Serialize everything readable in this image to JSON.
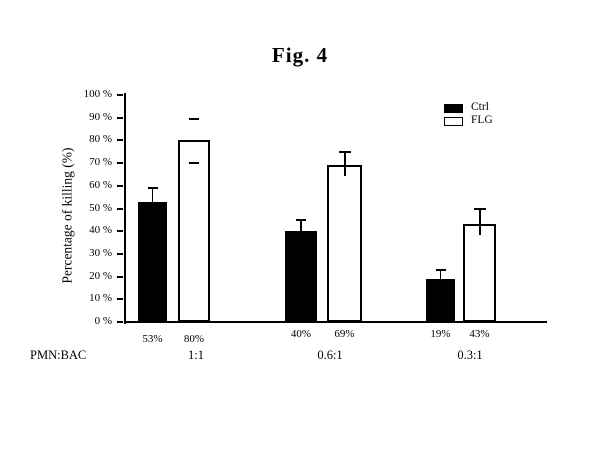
{
  "figure_title": "Fig. 4",
  "chart_data": {
    "type": "bar",
    "title": "Fig. 4",
    "ylabel": "Percentage of killing (%)",
    "xlabel": "PMN:BAC",
    "categories": [
      "1:1",
      "0.6:1",
      "0.3:1"
    ],
    "series": [
      {
        "name": "Ctrl",
        "color": "#000000",
        "values": [
          53,
          40,
          19
        ],
        "errors_up": [
          6,
          5,
          4
        ]
      },
      {
        "name": "FLG",
        "color": "#ffffff",
        "values": [
          80,
          69,
          43
        ],
        "errors_up": [
          10,
          6,
          7
        ],
        "errors_down_cap_only": [
          9.5,
          0,
          0
        ]
      }
    ],
    "value_labels": [
      [
        "53%",
        "80%"
      ],
      [
        "40%",
        "69%"
      ],
      [
        "19%",
        "43%"
      ]
    ],
    "ytick_labels": [
      "0 %",
      "10 %",
      "20 %",
      "30 %",
      "40 %",
      "50 %",
      "60 %",
      "70 %",
      "80 %",
      "90 %",
      "100 %"
    ],
    "ylim": [
      0,
      100
    ],
    "ytick_step": 10,
    "grid": false,
    "legend": {
      "position": "top-right",
      "entries": [
        "Ctrl",
        "FLG"
      ]
    }
  }
}
